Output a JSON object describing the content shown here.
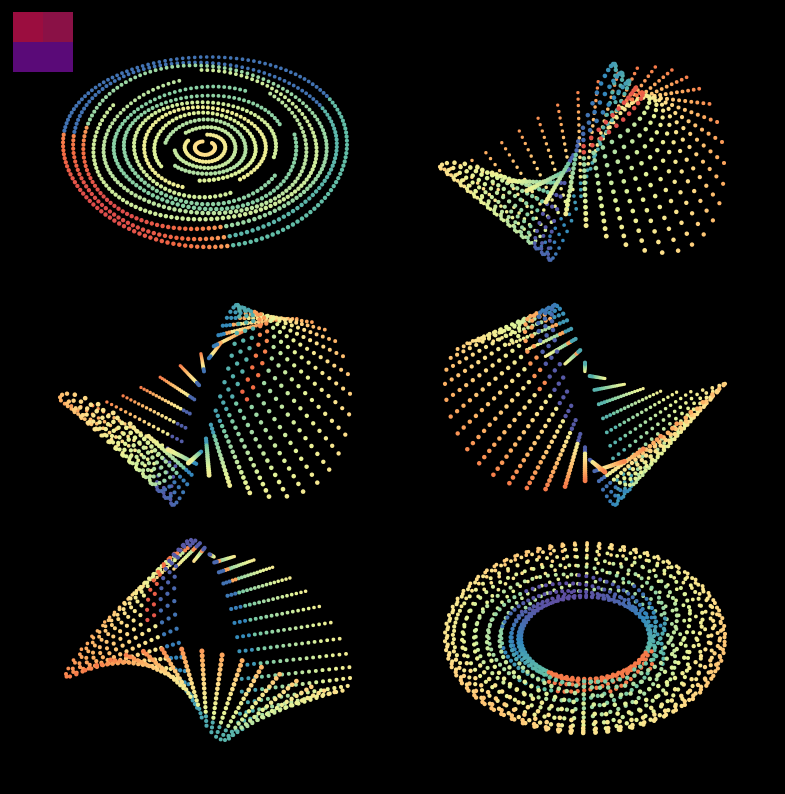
{
  "background_color": "#000000",
  "swatch": {
    "top_left_color": "#9b0d3f",
    "top_right_color": "#8a1146",
    "bottom_color": "#5a0a78"
  },
  "palette": [
    "#5e4fa2",
    "#3288bd",
    "#66c2a5",
    "#abdda4",
    "#e6f598",
    "#fee08b",
    "#fdae61",
    "#f46d43",
    "#d53e4f"
  ],
  "panels": [
    {
      "id": "panel-1",
      "shape": "concentric-rings-disc"
    },
    {
      "id": "panel-2",
      "shape": "twisted-loop-surface"
    },
    {
      "id": "panel-3",
      "shape": "folded-bowl-surface"
    },
    {
      "id": "panel-4",
      "shape": "twisted-fin-surface"
    },
    {
      "id": "panel-5",
      "shape": "folded-cone-surface"
    },
    {
      "id": "panel-6",
      "shape": "spiral-torus"
    }
  ]
}
